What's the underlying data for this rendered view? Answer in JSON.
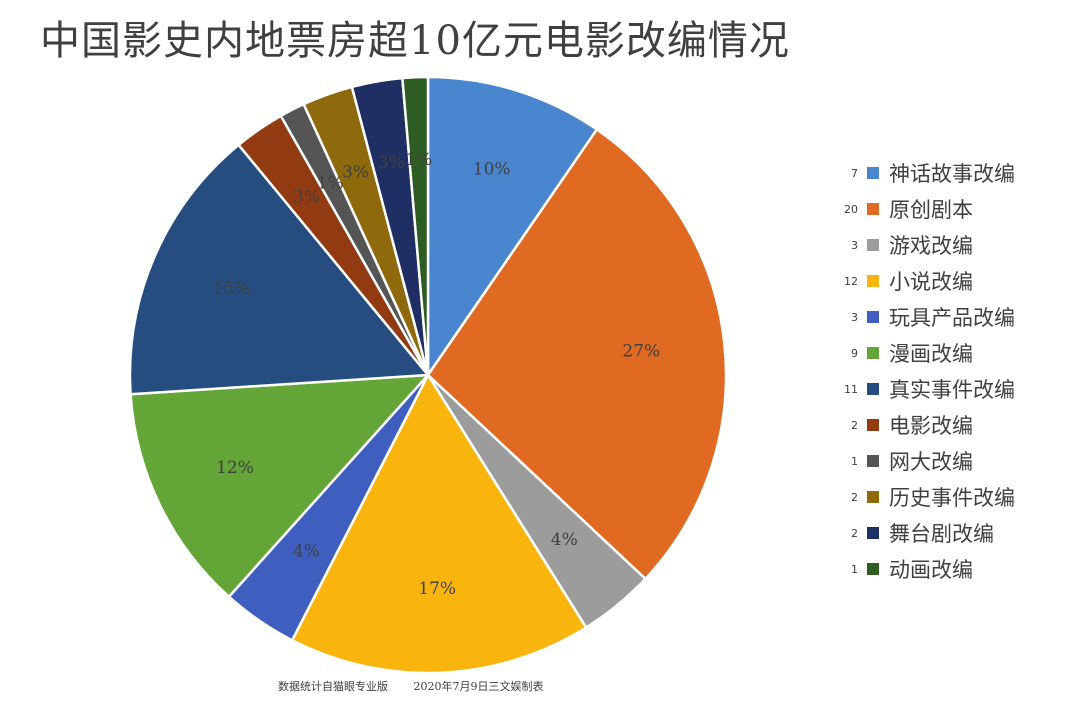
{
  "title": "中国影史内地票房超10亿元电影改编情况",
  "footer": {
    "source": "数据统计自猫眼专业版",
    "date_note": "2020年7月9日三文娱制表"
  },
  "chart_data": {
    "type": "pie",
    "title": "中国影史内地票房超10亿元电影改编情况",
    "start_angle_deg": 0,
    "direction": "clockwise",
    "legend_position": "right",
    "slices": [
      {
        "label": "神话故事改编",
        "count": 7,
        "percent_label": "10%",
        "color": "#4A86CF"
      },
      {
        "label": "原创剧本",
        "count": 20,
        "percent_label": "27%",
        "color": "#E06A22"
      },
      {
        "label": "游戏改编",
        "count": 3,
        "percent_label": "4%",
        "color": "#9C9C9C"
      },
      {
        "label": "小说改编",
        "count": 12,
        "percent_label": "17%",
        "color": "#F9B50D"
      },
      {
        "label": "玩具产品改编",
        "count": 3,
        "percent_label": "4%",
        "color": "#3E5FBF"
      },
      {
        "label": "漫画改编",
        "count": 9,
        "percent_label": "12%",
        "color": "#64A537"
      },
      {
        "label": "真实事件改编",
        "count": 11,
        "percent_label": "15%",
        "color": "#254D80"
      },
      {
        "label": "电影改编",
        "count": 2,
        "percent_label": "3%",
        "color": "#923A12"
      },
      {
        "label": "网大改编",
        "count": 1,
        "percent_label": "1%",
        "color": "#555555"
      },
      {
        "label": "历史事件改编",
        "count": 2,
        "percent_label": "3%",
        "color": "#8E6A0C"
      },
      {
        "label": "舞台剧改编",
        "count": 2,
        "percent_label": "3%",
        "color": "#1F2F63"
      },
      {
        "label": "动画改编",
        "count": 1,
        "percent_label": "1%",
        "color": "#2D5D22"
      }
    ]
  }
}
